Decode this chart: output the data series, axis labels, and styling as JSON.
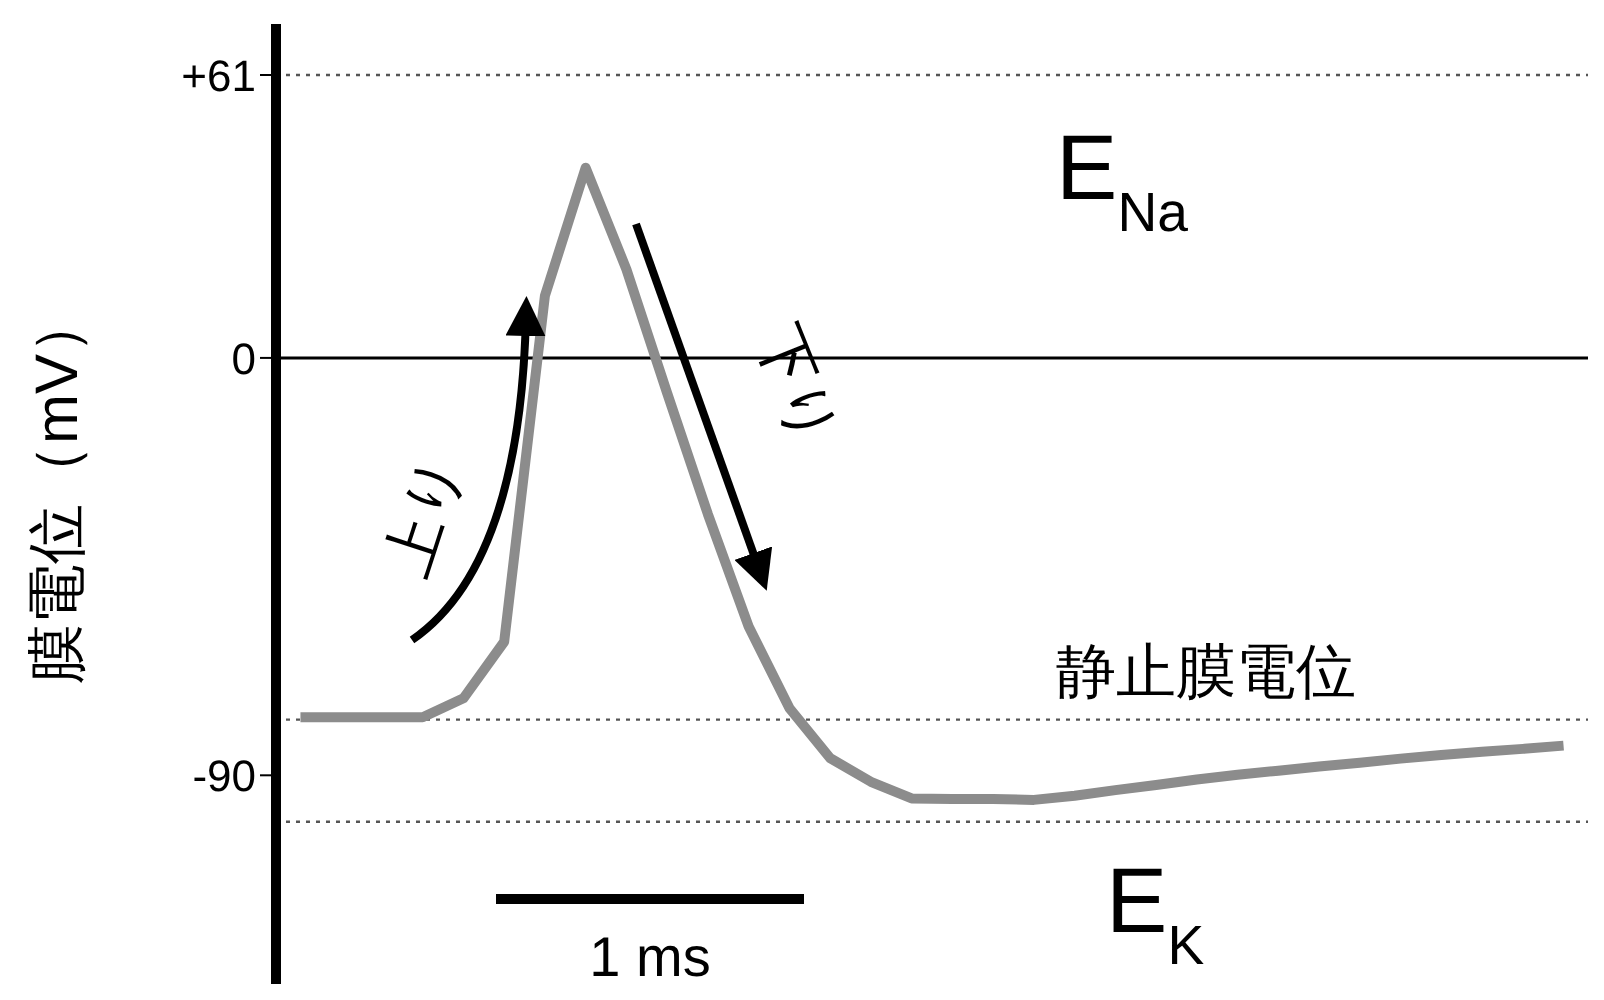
{
  "chart_data": {
    "type": "line",
    "ylabel": "膜電位（mV）",
    "categories": [
      null,
      null,
      null,
      null,
      null,
      null,
      null,
      null,
      null,
      null,
      null,
      null,
      null,
      null,
      null,
      null,
      null,
      null,
      null,
      null,
      null,
      null,
      null,
      null,
      null,
      null,
      null,
      null,
      null,
      null,
      null,
      null
    ],
    "series": [
      {
        "color": "#8c8c8c",
        "values": [
          -77.5,
          -77.5,
          -77.5,
          -77.5,
          -73.4,
          -61.2,
          13.4,
          41.0,
          19.1,
          -7.6,
          -33.7,
          -57.9,
          -75.5,
          -86.3,
          -91.4,
          -95.0,
          -95.1,
          -95.1,
          -95.3,
          -94.4,
          -93.2,
          -92.1,
          -90.9,
          -89.9,
          -89.0,
          -88.1,
          -87.3,
          -86.4,
          -85.6,
          -84.9,
          -84.3,
          -83.6
        ]
      }
    ],
    "ylim": [
      -135,
      72
    ],
    "yticks": [
      {
        "value": 61,
        "label": "+61"
      },
      0,
      -90
    ],
    "tick_labels": "y",
    "marker": "none",
    "line_style": "solid",
    "ref_lines": [
      {
        "axis": "y",
        "value": 61,
        "label": "E$_{Na}$",
        "color": "#555555",
        "line_style": "dotted"
      },
      {
        "axis": "y",
        "value": 0,
        "color": "#000000",
        "line_style": "solid"
      },
      {
        "axis": "y",
        "value": -78,
        "label": "静止膜電位",
        "color": "#555555",
        "line_style": "dotted"
      },
      {
        "axis": "y",
        "value": -100,
        "label": "E$_{K}$",
        "color": "#555555",
        "line_style": "dotted"
      }
    ],
    "annotations": [
      "上り",
      "下り",
      "1 ms"
    ]
  }
}
